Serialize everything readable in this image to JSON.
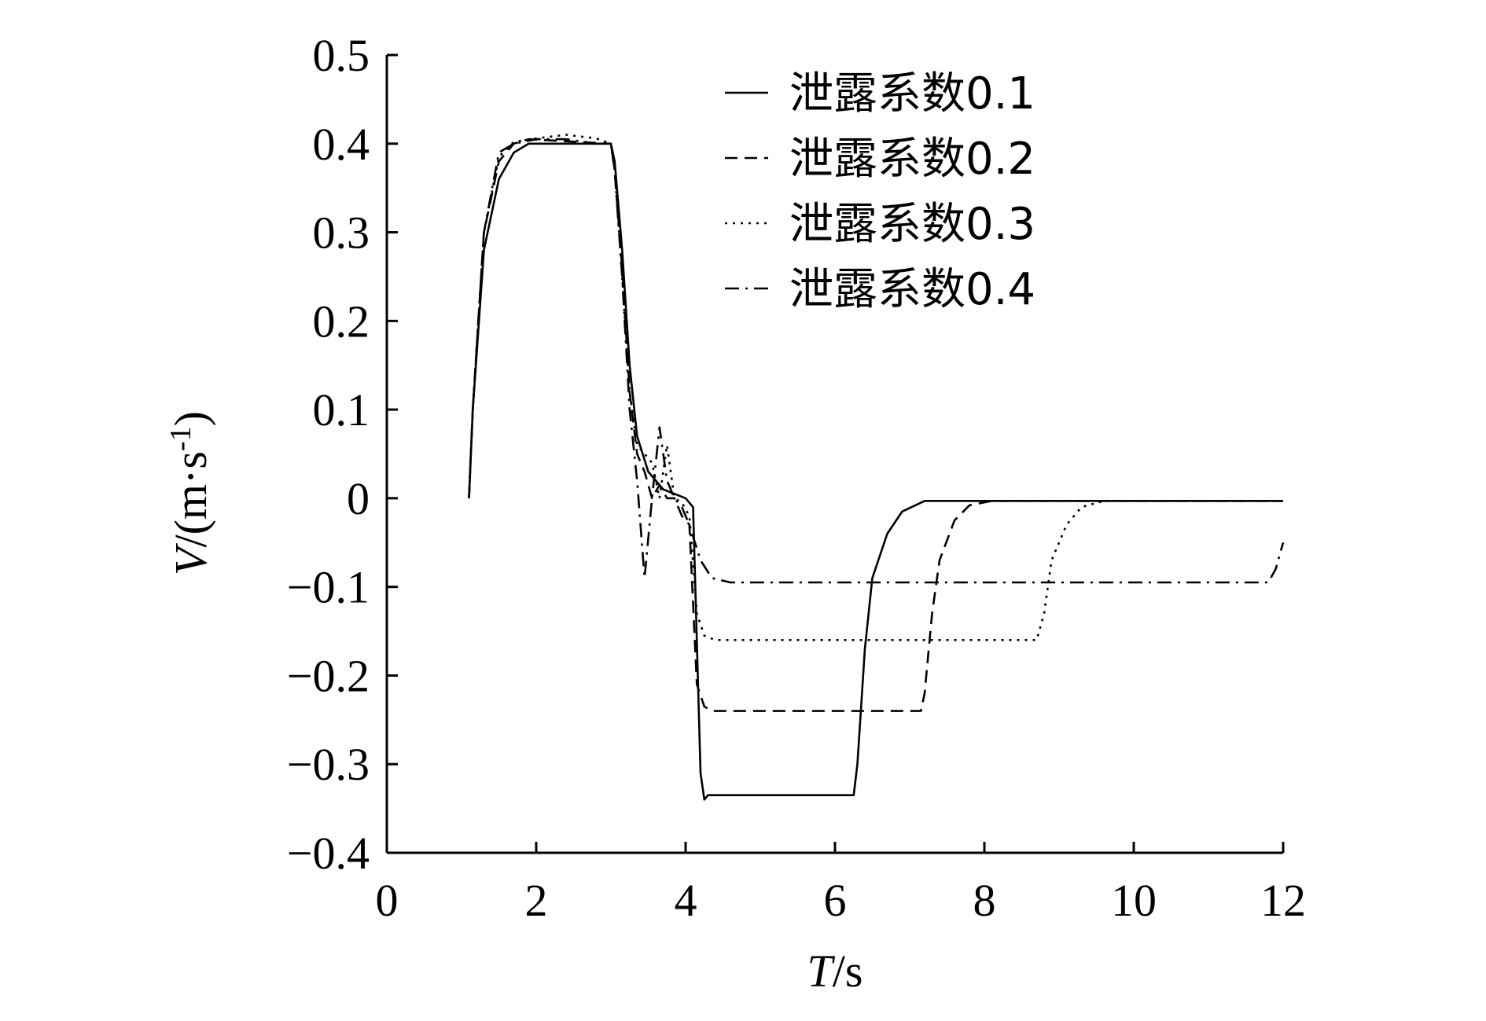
{
  "chart_data": {
    "type": "line",
    "title": "",
    "xlabel": {
      "var": "T",
      "unit": "/s"
    },
    "ylabel": {
      "var": "V",
      "unit_prefix": "/(m·s",
      "unit_sup": "-1",
      "unit_suffix": ")"
    },
    "xlim": [
      0,
      12
    ],
    "ylim": [
      -0.4,
      0.5
    ],
    "xticks": [
      0,
      2,
      4,
      6,
      8,
      10,
      12
    ],
    "yticks": [
      0.5,
      0.4,
      0.3,
      0.2,
      0.1,
      0,
      -0.1,
      -0.2,
      -0.3,
      -0.4
    ],
    "xtick_labels": [
      "0",
      "2",
      "4",
      "6",
      "8",
      "10",
      "12"
    ],
    "ytick_labels": [
      "0.5",
      "0.4",
      "0.3",
      "0.2",
      "0.1",
      "0",
      "−0.1",
      "−0.2",
      "−0.3",
      "−0.4"
    ],
    "grid": false,
    "legend_position": "top-right",
    "series": [
      {
        "name": "泄露系数0.1",
        "style": "solid",
        "points": [
          [
            1.1,
            0.0
          ],
          [
            1.15,
            0.1
          ],
          [
            1.3,
            0.28
          ],
          [
            1.5,
            0.36
          ],
          [
            1.7,
            0.39
          ],
          [
            1.9,
            0.4
          ],
          [
            3.0,
            0.4
          ],
          [
            3.05,
            0.38
          ],
          [
            3.15,
            0.28
          ],
          [
            3.25,
            0.15
          ],
          [
            3.35,
            0.07
          ],
          [
            3.5,
            0.03
          ],
          [
            3.7,
            0.01
          ],
          [
            4.0,
            0.0
          ],
          [
            4.1,
            -0.01
          ],
          [
            4.2,
            -0.31
          ],
          [
            4.25,
            -0.34
          ],
          [
            4.3,
            -0.335
          ],
          [
            6.25,
            -0.335
          ],
          [
            6.3,
            -0.3
          ],
          [
            6.4,
            -0.17
          ],
          [
            6.5,
            -0.09
          ],
          [
            6.7,
            -0.04
          ],
          [
            6.9,
            -0.015
          ],
          [
            7.2,
            -0.003
          ],
          [
            12.0,
            -0.003
          ]
        ]
      },
      {
        "name": "泄露系数0.2",
        "style": "dashed",
        "points": [
          [
            1.1,
            0.0
          ],
          [
            1.15,
            0.1
          ],
          [
            1.3,
            0.3
          ],
          [
            1.5,
            0.38
          ],
          [
            1.7,
            0.4
          ],
          [
            1.9,
            0.405
          ],
          [
            3.0,
            0.4
          ],
          [
            3.05,
            0.37
          ],
          [
            3.15,
            0.26
          ],
          [
            3.25,
            0.12
          ],
          [
            3.35,
            0.05
          ],
          [
            3.45,
            0.03
          ],
          [
            3.55,
            0.0
          ],
          [
            3.65,
            0.015
          ],
          [
            3.75,
            0.0
          ],
          [
            3.85,
            0.0
          ],
          [
            3.95,
            -0.02
          ],
          [
            4.05,
            -0.03
          ],
          [
            4.15,
            -0.21
          ],
          [
            4.25,
            -0.235
          ],
          [
            4.35,
            -0.24
          ],
          [
            7.15,
            -0.24
          ],
          [
            7.2,
            -0.22
          ],
          [
            7.3,
            -0.13
          ],
          [
            7.4,
            -0.07
          ],
          [
            7.6,
            -0.025
          ],
          [
            7.8,
            -0.008
          ],
          [
            8.1,
            -0.003
          ],
          [
            12.0,
            -0.003
          ]
        ]
      },
      {
        "name": "泄露系数0.3",
        "style": "dotted",
        "points": [
          [
            1.1,
            0.0
          ],
          [
            1.15,
            0.1
          ],
          [
            1.3,
            0.3
          ],
          [
            1.5,
            0.385
          ],
          [
            1.7,
            0.402
          ],
          [
            2.0,
            0.406
          ],
          [
            2.4,
            0.41
          ],
          [
            2.8,
            0.406
          ],
          [
            3.0,
            0.4
          ],
          [
            3.05,
            0.37
          ],
          [
            3.15,
            0.25
          ],
          [
            3.25,
            0.12
          ],
          [
            3.35,
            0.06
          ],
          [
            3.45,
            0.05
          ],
          [
            3.55,
            0.04
          ],
          [
            3.65,
            0.0
          ],
          [
            3.75,
            0.06
          ],
          [
            3.85,
            0.0
          ],
          [
            3.95,
            -0.005
          ],
          [
            4.05,
            -0.02
          ],
          [
            4.15,
            -0.13
          ],
          [
            4.25,
            -0.155
          ],
          [
            4.4,
            -0.16
          ],
          [
            8.7,
            -0.16
          ],
          [
            8.8,
            -0.13
          ],
          [
            8.9,
            -0.07
          ],
          [
            9.1,
            -0.03
          ],
          [
            9.3,
            -0.01
          ],
          [
            9.6,
            -0.003
          ],
          [
            12.0,
            -0.003
          ]
        ]
      },
      {
        "name": "泄露系数0.4",
        "style": "dashdot",
        "points": [
          [
            1.1,
            0.0
          ],
          [
            1.15,
            0.1
          ],
          [
            1.3,
            0.3
          ],
          [
            1.5,
            0.39
          ],
          [
            1.7,
            0.4
          ],
          [
            2.0,
            0.405
          ],
          [
            2.4,
            0.405
          ],
          [
            2.8,
            0.4
          ],
          [
            3.0,
            0.4
          ],
          [
            3.05,
            0.37
          ],
          [
            3.15,
            0.25
          ],
          [
            3.25,
            0.1
          ],
          [
            3.35,
            0.02
          ],
          [
            3.45,
            -0.09
          ],
          [
            3.55,
            0.0
          ],
          [
            3.65,
            0.08
          ],
          [
            3.75,
            0.02
          ],
          [
            3.85,
            0.0
          ],
          [
            3.95,
            -0.01
          ],
          [
            4.05,
            -0.03
          ],
          [
            4.2,
            -0.07
          ],
          [
            4.35,
            -0.09
          ],
          [
            4.6,
            -0.095
          ],
          [
            11.8,
            -0.095
          ],
          [
            11.9,
            -0.08
          ],
          [
            12.0,
            -0.05
          ]
        ]
      }
    ]
  }
}
